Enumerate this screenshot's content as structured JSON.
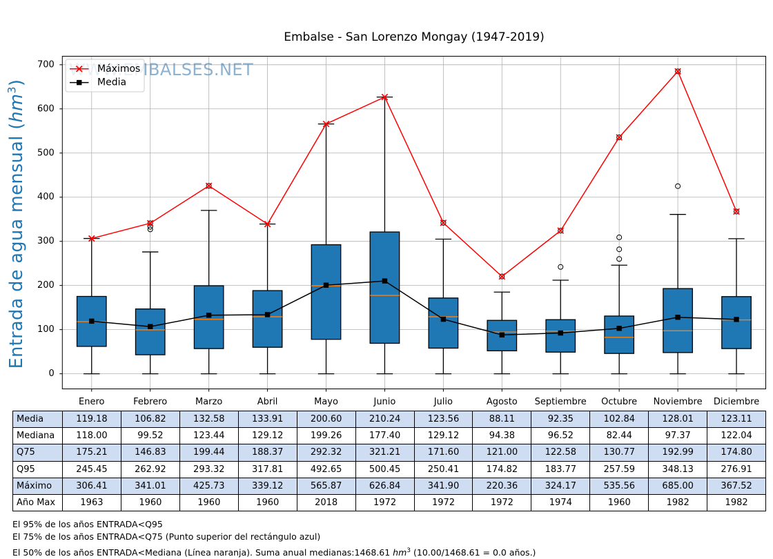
{
  "title": "Embalse - San Lorenzo Mongay (1947-2019)",
  "watermark": "WWW.EMBALSES.NET",
  "y_axis_label": {
    "prefix": "Entrada de agua mensual (",
    "unit": "hm",
    "exponent": "3",
    "suffix": ")"
  },
  "legend": {
    "items": [
      {
        "label": "Máximos",
        "color": "#ff0000",
        "marker": "x"
      },
      {
        "label": "Media",
        "color": "#000000",
        "marker": "square"
      }
    ]
  },
  "chart_data": {
    "type": "boxplot",
    "categories": [
      "Enero",
      "Febrero",
      "Marzo",
      "Abril",
      "Mayo",
      "Junio",
      "Julio",
      "Agosto",
      "Septiembre",
      "Octubre",
      "Noviembre",
      "Diciembre"
    ],
    "title": "Embalse - San Lorenzo Mongay (1947-2019)",
    "xlabel": "",
    "ylabel": "Entrada de agua mensual (hm3)",
    "ylim": [
      -34.25,
      719.25
    ],
    "yticks": [
      0,
      100,
      200,
      300,
      400,
      500,
      600,
      700
    ],
    "grid": true,
    "legend_position": "upper left",
    "series": [
      {
        "name": "Máximos",
        "type": "line",
        "marker": "x",
        "color": "#ff0000",
        "values": [
          306.41,
          341.01,
          425.73,
          339.12,
          565.87,
          626.84,
          341.9,
          220.36,
          324.17,
          535.56,
          685.0,
          367.52
        ]
      },
      {
        "name": "Media",
        "type": "line",
        "marker": "square",
        "color": "#000000",
        "values": [
          119.18,
          106.82,
          132.58,
          133.91,
          200.6,
          210.24,
          123.56,
          88.11,
          92.35,
          102.84,
          128.01,
          123.11
        ]
      }
    ],
    "boxes": {
      "q1": [
        62,
        43,
        57,
        60,
        78,
        69,
        58,
        52,
        49,
        46,
        48,
        57
      ],
      "median": [
        118.0,
        99.52,
        123.44,
        129.12,
        199.26,
        177.4,
        129.12,
        94.38,
        96.52,
        82.44,
        97.37,
        122.04
      ],
      "q3": [
        175.21,
        146.83,
        199.44,
        188.37,
        292.32,
        321.21,
        171.6,
        121.0,
        122.58,
        130.77,
        192.99,
        174.8
      ],
      "whisker_low": [
        0,
        0,
        0,
        0,
        0,
        0,
        0,
        0,
        0,
        0,
        0,
        0
      ],
      "whisker_high": [
        306.41,
        276,
        370,
        339.12,
        565.87,
        626.84,
        305,
        185,
        212,
        246,
        361,
        306
      ],
      "outliers": [
        [],
        [
          327,
          333,
          341.01
        ],
        [
          425.73
        ],
        [],
        [],
        [],
        [
          341.9
        ],
        [
          220.36
        ],
        [
          242,
          324.17
        ],
        [
          260,
          282,
          309,
          535.56
        ],
        [
          425,
          685.0
        ],
        [
          367.52
        ]
      ],
      "box_fill": "#1f77b4",
      "box_edge": "#000000",
      "median_color": "#ff7f0e"
    }
  },
  "colors": {
    "accent_blue": "#1f77b4",
    "median_orange": "#ff7f0e",
    "max_red": "#ff0000",
    "grid_gray": "#b0b0b0",
    "watermark_blue": "#4682b4",
    "table_row_blue": "#cfddf2",
    "ylabel_blue": "#1f77b4"
  },
  "table": {
    "row_labels": [
      "Media",
      "Mediana",
      "Q75",
      "Q95",
      "Máximo",
      "Año Max"
    ],
    "rows": [
      [
        "119.18",
        "106.82",
        "132.58",
        "133.91",
        "200.60",
        "210.24",
        "123.56",
        "88.11",
        "92.35",
        "102.84",
        "128.01",
        "123.11"
      ],
      [
        "118.00",
        "99.52",
        "123.44",
        "129.12",
        "199.26",
        "177.40",
        "129.12",
        "94.38",
        "96.52",
        "82.44",
        "97.37",
        "122.04"
      ],
      [
        "175.21",
        "146.83",
        "199.44",
        "188.37",
        "292.32",
        "321.21",
        "171.60",
        "121.00",
        "122.58",
        "130.77",
        "192.99",
        "174.80"
      ],
      [
        "245.45",
        "262.92",
        "293.32",
        "317.81",
        "492.65",
        "500.45",
        "250.41",
        "174.82",
        "183.77",
        "257.59",
        "348.13",
        "276.91"
      ],
      [
        "306.41",
        "341.01",
        "425.73",
        "339.12",
        "565.87",
        "626.84",
        "341.90",
        "220.36",
        "324.17",
        "535.56",
        "685.00",
        "367.52"
      ],
      [
        "1963",
        "1960",
        "1960",
        "1960",
        "2018",
        "1972",
        "1972",
        "1972",
        "1974",
        "1960",
        "1982",
        "1982"
      ]
    ]
  },
  "footnotes": {
    "q95": "El 95% de los años ENTRADA<Q95",
    "q75": "El 75% de los años ENTRADA<Q75 (Punto superior del rectángulo azul)",
    "mediana_prefix": "El 50% de los años ENTRADA<Mediana (Línea naranja). Suma anual medianas:1468.61 ",
    "unit": "hm",
    "exponent": "3",
    "mediana_suffix": " (10.00/1468.61 = 0.0 años.)"
  }
}
